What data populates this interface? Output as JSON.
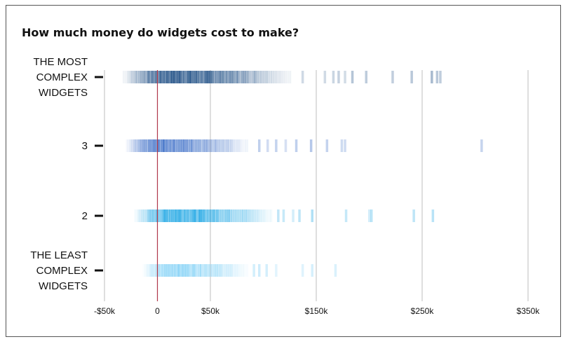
{
  "chart_data": {
    "type": "strip",
    "title": "How much money do widgets cost to make?",
    "xlabel": "",
    "ylabel": "",
    "xlim": [
      -50000,
      350000
    ],
    "x_ticks": [
      {
        "value": -50000,
        "label": "-$50k"
      },
      {
        "value": 0,
        "label": "0"
      },
      {
        "value": 50000,
        "label": "$50k"
      },
      {
        "value": 150000,
        "label": "$150k"
      },
      {
        "value": 250000,
        "label": "$250k"
      },
      {
        "value": 350000,
        "label": "$350k"
      }
    ],
    "gridlines_at": [
      -50000,
      50000,
      150000,
      250000,
      350000
    ],
    "reference_line": {
      "value": 0,
      "color": "#b0384a"
    },
    "series": [
      {
        "category_lines": [
          "THE MOST",
          "COMPLEX",
          "WIDGETS"
        ],
        "color": "#0b3f7a",
        "dense_range": [
          -33000,
          125000
        ],
        "outliers": [
          137000,
          158000,
          166000,
          171000,
          177000,
          184000,
          197000,
          222000,
          240000,
          259000,
          264000,
          267000
        ]
      },
      {
        "category_lines": [
          "3"
        ],
        "color": "#3a6cc6",
        "dense_range": [
          -30000,
          85000
        ],
        "outliers": [
          96000,
          104000,
          112000,
          121000,
          131000,
          145000,
          160000,
          174000,
          177000,
          306000
        ]
      },
      {
        "category_lines": [
          "2"
        ],
        "color": "#0fa0e2",
        "dense_range": [
          -22000,
          108000
        ],
        "outliers": [
          114000,
          119000,
          128000,
          134000,
          146000,
          178000,
          200000,
          202000,
          242000,
          260000
        ]
      },
      {
        "category_lines": [
          "THE LEAST",
          "COMPLEX",
          "WIDGETS"
        ],
        "color": "#7fd0f6",
        "dense_range": [
          -14000,
          85000
        ],
        "outliers": [
          91000,
          96000,
          103000,
          112000,
          137000,
          146000,
          168000
        ]
      }
    ]
  }
}
